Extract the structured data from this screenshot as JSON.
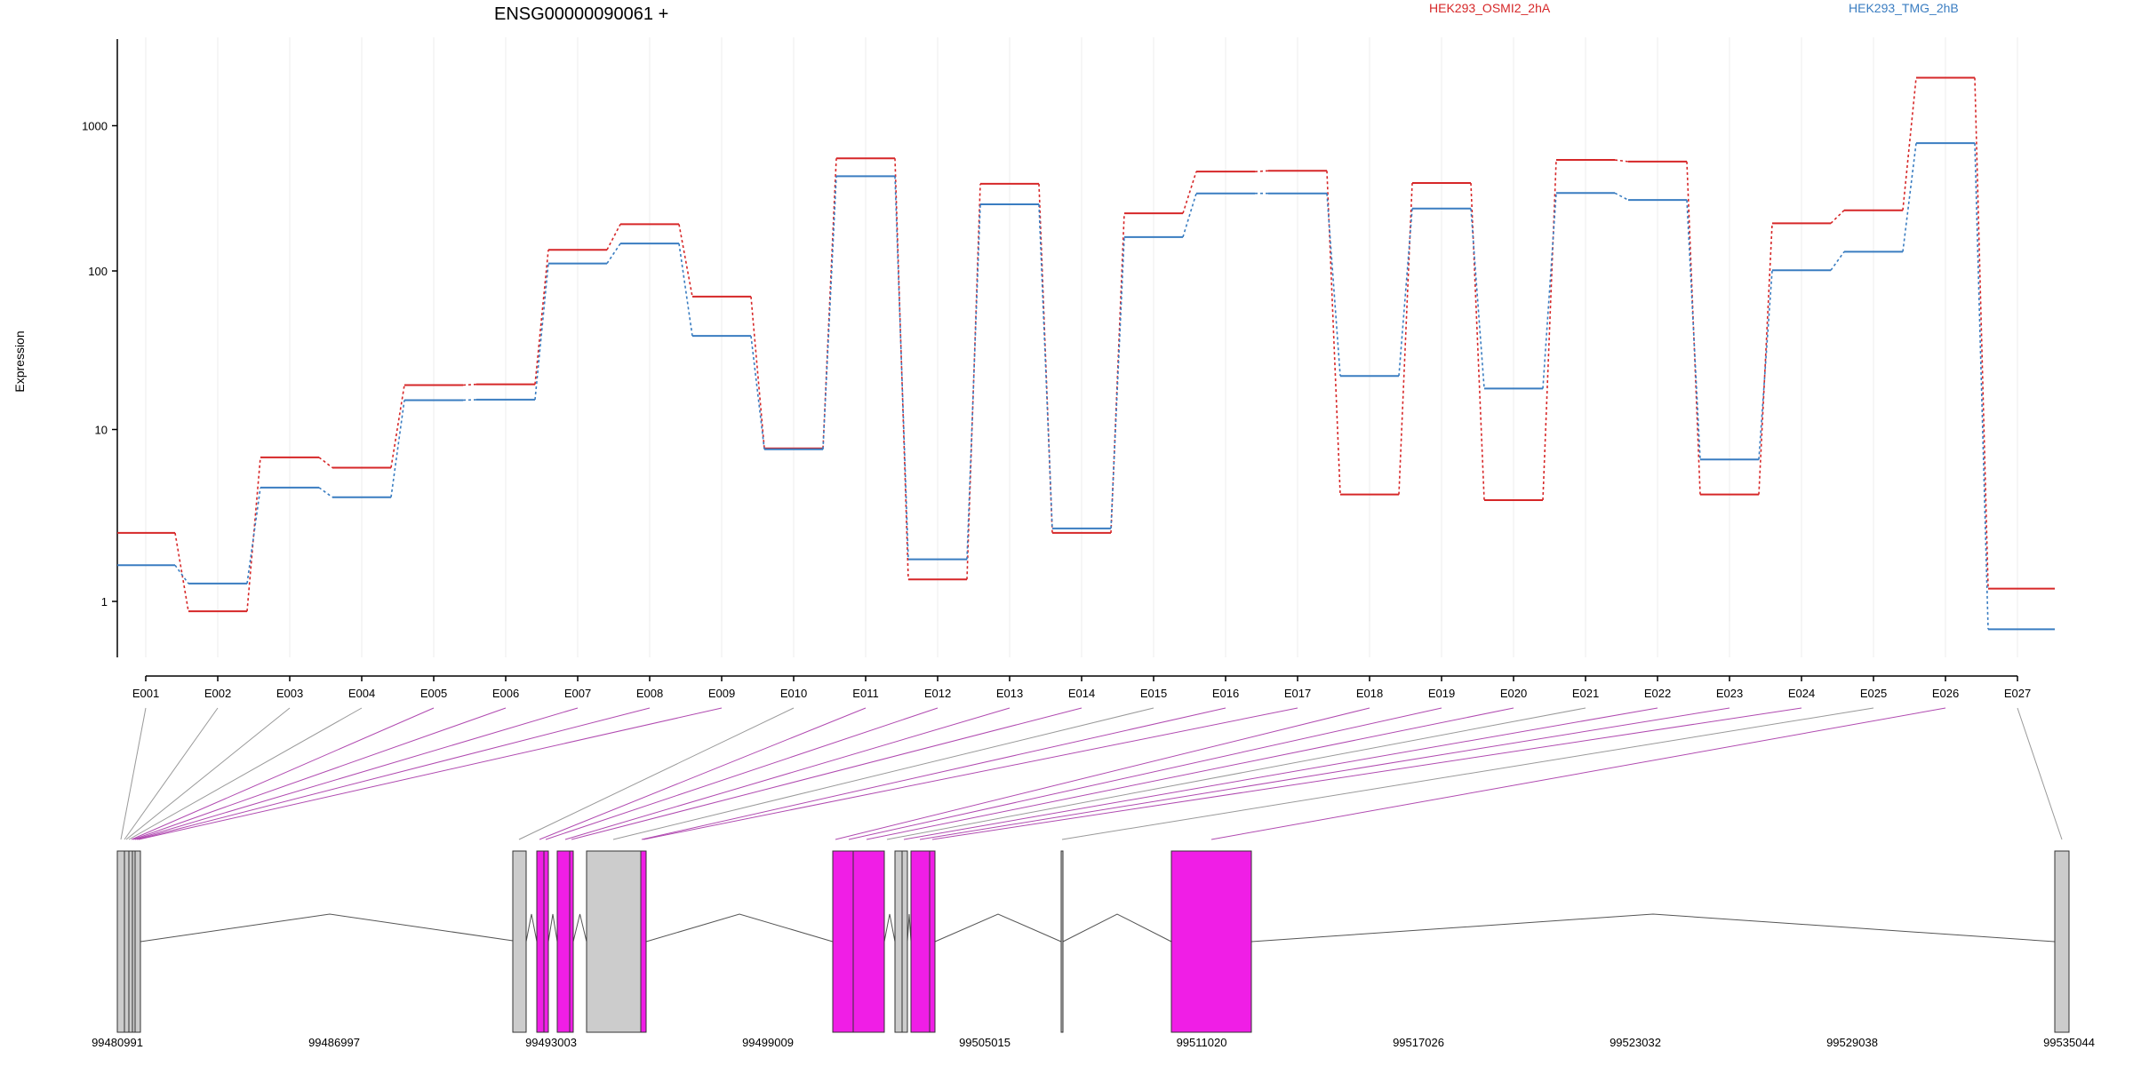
{
  "chart_data": {
    "type": "line",
    "title": "ENSG00000090061 +",
    "ylabel": "Expression",
    "yscale": "log",
    "ylim": [
      0.6,
      3000
    ],
    "yticks": [
      1,
      10,
      100,
      1000
    ],
    "ytick_labels": [
      "1",
      "10",
      "100",
      "1000"
    ],
    "grid": "vertical lines at each exon",
    "legend_position": "top-right",
    "categories": [
      "E001",
      "E002",
      "E003",
      "E004",
      "E005",
      "E006",
      "E007",
      "E008",
      "E009",
      "E010",
      "E011",
      "E012",
      "E013",
      "E014",
      "E015",
      "E016",
      "E017",
      "E018",
      "E019",
      "E020",
      "E021",
      "E022",
      "E023",
      "E024",
      "E025",
      "E026",
      "E027"
    ],
    "series": [
      {
        "name": "HEK293_OSMI2_2hA",
        "color": "#d62728",
        "values": [
          2.45,
          0.88,
          6.8,
          5.9,
          18.7,
          18.9,
          138,
          205,
          68,
          7.7,
          585,
          1.33,
          388,
          2.45,
          243,
          472,
          478,
          4.1,
          393,
          3.8,
          570,
          555,
          4.1,
          208,
          255,
          2250,
          1.18
        ]
      },
      {
        "name": "HEK293_TMG_2hB",
        "color": "#3a7dc1",
        "values": [
          1.6,
          1.26,
          4.5,
          3.95,
          15.1,
          15.2,
          112,
          152,
          38,
          7.6,
          438,
          1.73,
          280,
          2.6,
          168,
          333,
          333,
          21.3,
          262,
          17.8,
          335,
          300,
          6.6,
          101,
          134,
          750,
          0.7
        ]
      }
    ],
    "gene_model": {
      "coordinate_ticks": [
        "99480991",
        "99486997",
        "99493003",
        "99499009",
        "99505015",
        "99511020",
        "99517026",
        "99523032",
        "99529038",
        "99535044"
      ],
      "exon_colors": {
        "normal": "#cccccc",
        "highlighted": "#f01ee6"
      },
      "connector_colors": {
        "normal": "#999999",
        "highlighted": "#b04ab0"
      }
    }
  }
}
